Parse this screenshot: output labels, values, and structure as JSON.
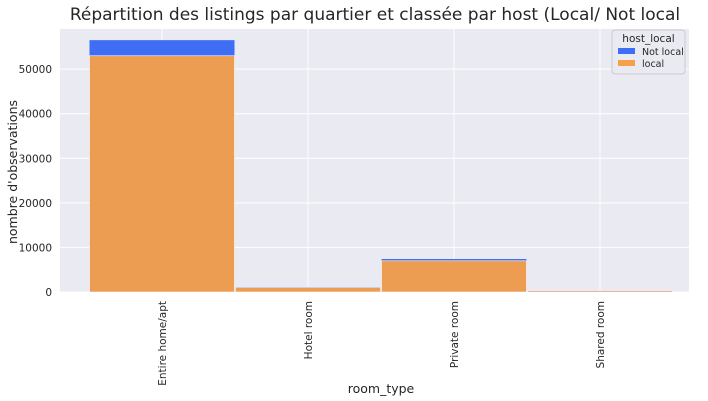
{
  "chart_data": {
    "type": "bar",
    "stacked": false,
    "title": "Répartition des listings par quartier et classée par host (Local/ Not local",
    "xlabel": "room_type",
    "ylabel": "nombre d'observations",
    "categories": [
      "Entire home/apt",
      "Hotel room",
      "Private room",
      "Shared room"
    ],
    "yticks": [
      0,
      10000,
      20000,
      30000,
      40000,
      50000
    ],
    "ylim": [
      0,
      59000
    ],
    "grid": true,
    "legend": {
      "title": "host_local",
      "placement": "top-right"
    },
    "series": [
      {
        "name": "Not local",
        "color": "#3f6ef5",
        "values": [
          56500,
          1100,
          7400,
          350
        ]
      },
      {
        "name": "local",
        "color": "#f7a04a",
        "values": [
          53000,
          1000,
          7000,
          300
        ]
      }
    ],
    "background": "#eaeaf2",
    "gridColor": "#ffffff"
  }
}
